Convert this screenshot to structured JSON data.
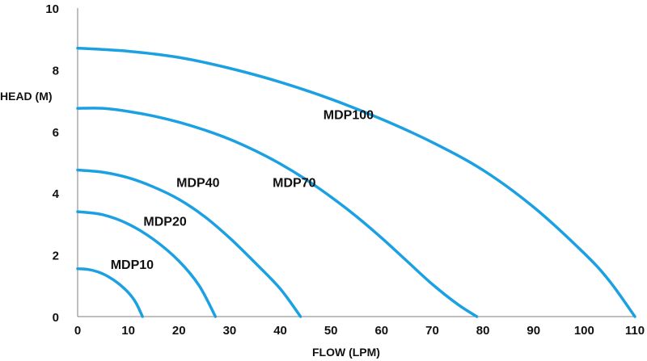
{
  "chart_data": {
    "type": "line",
    "title": "",
    "xlabel": "FLOW (LPM)",
    "ylabel": "HEAD (M)",
    "xlim": [
      0,
      110
    ],
    "ylim": [
      0,
      10
    ],
    "xticks": [
      0,
      10,
      20,
      30,
      40,
      50,
      60,
      70,
      80,
      90,
      100,
      110
    ],
    "yticks": [
      0,
      2,
      4,
      6,
      8,
      10
    ],
    "grid": false,
    "series_color": "#1ba1e2",
    "series": [
      {
        "name": "MDP10",
        "points": [
          [
            0,
            1.55
          ],
          [
            2,
            1.53
          ],
          [
            4,
            1.45
          ],
          [
            6,
            1.3
          ],
          [
            8,
            1.08
          ],
          [
            10,
            0.78
          ],
          [
            11.5,
            0.45
          ],
          [
            12.8,
            0
          ]
        ]
      },
      {
        "name": "MDP20",
        "points": [
          [
            0,
            3.4
          ],
          [
            5,
            3.3
          ],
          [
            10,
            3.0
          ],
          [
            15,
            2.5
          ],
          [
            20,
            1.8
          ],
          [
            24,
            1.0
          ],
          [
            27.2,
            0
          ]
        ]
      },
      {
        "name": "MDP40",
        "points": [
          [
            0,
            4.75
          ],
          [
            5,
            4.68
          ],
          [
            10,
            4.5
          ],
          [
            15,
            4.2
          ],
          [
            20,
            3.8
          ],
          [
            25,
            3.25
          ],
          [
            30,
            2.55
          ],
          [
            35,
            1.75
          ],
          [
            40,
            0.9
          ],
          [
            44,
            0
          ]
        ]
      },
      {
        "name": "MDP70",
        "points": [
          [
            0,
            6.75
          ],
          [
            5,
            6.75
          ],
          [
            10,
            6.65
          ],
          [
            15,
            6.5
          ],
          [
            20,
            6.3
          ],
          [
            25,
            6.05
          ],
          [
            30,
            5.75
          ],
          [
            35,
            5.38
          ],
          [
            40,
            4.95
          ],
          [
            45,
            4.45
          ],
          [
            50,
            3.88
          ],
          [
            55,
            3.25
          ],
          [
            60,
            2.55
          ],
          [
            65,
            1.8
          ],
          [
            70,
            1.05
          ],
          [
            75,
            0.4
          ],
          [
            78.8,
            0
          ]
        ]
      },
      {
        "name": "MDP100",
        "points": [
          [
            0,
            8.7
          ],
          [
            10,
            8.6
          ],
          [
            20,
            8.4
          ],
          [
            30,
            8.05
          ],
          [
            40,
            7.6
          ],
          [
            50,
            7.05
          ],
          [
            60,
            6.4
          ],
          [
            70,
            5.65
          ],
          [
            80,
            4.75
          ],
          [
            90,
            3.55
          ],
          [
            100,
            2.05
          ],
          [
            105,
            1.15
          ],
          [
            110,
            0
          ]
        ]
      }
    ],
    "annotations": [
      {
        "text": "MDP10",
        "x": 6.5,
        "y": 1.55
      },
      {
        "text": "MDP20",
        "x": 13,
        "y": 2.95
      },
      {
        "text": "MDP40",
        "x": 19.5,
        "y": 4.2
      },
      {
        "text": "MDP70",
        "x": 38.5,
        "y": 4.2
      },
      {
        "text": "MDP100",
        "x": 48.5,
        "y": 6.4
      }
    ]
  }
}
